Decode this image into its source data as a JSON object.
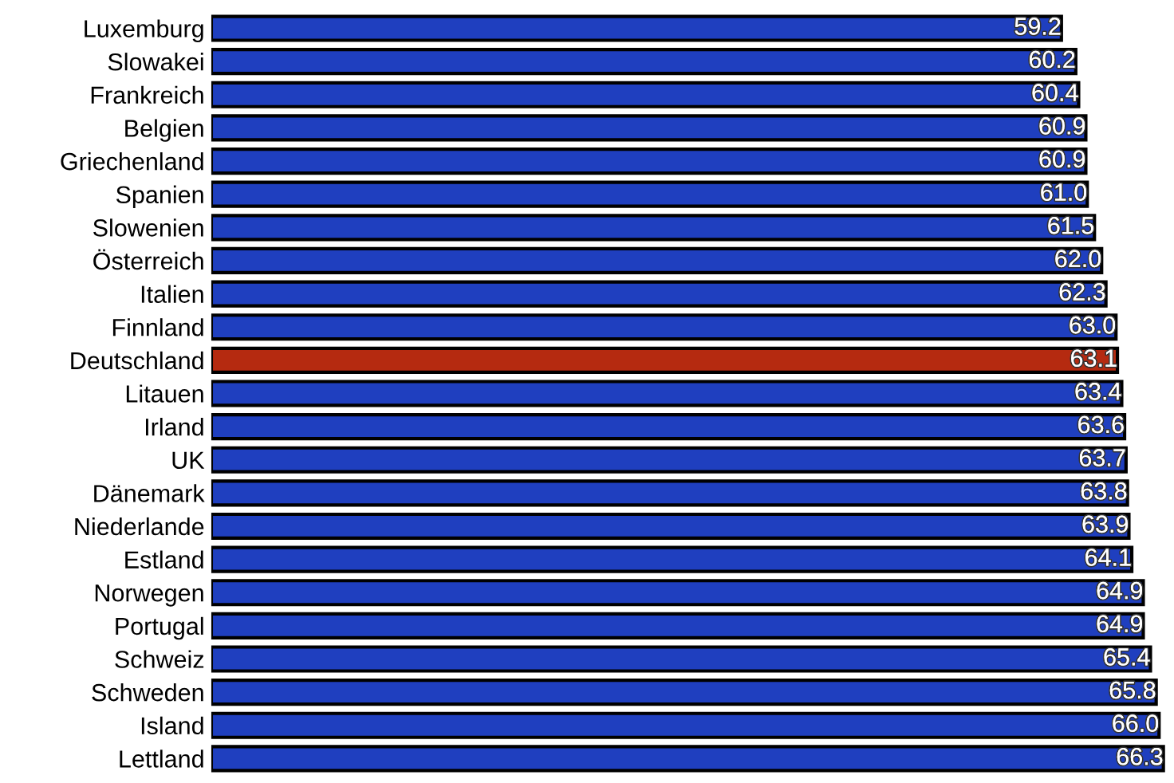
{
  "chart_data": {
    "type": "bar",
    "orientation": "horizontal",
    "categories": [
      "Luxemburg",
      "Slowakei",
      "Frankreich",
      "Belgien",
      "Griechenland",
      "Spanien",
      "Slowenien",
      "Österreich",
      "Italien",
      "Finnland",
      "Deutschland",
      "Litauen",
      "Irland",
      "UK",
      "Dänemark",
      "Niederlande",
      "Estland",
      "Norwegen",
      "Portugal",
      "Schweiz",
      "Schweden",
      "Island",
      "Lettland"
    ],
    "values": [
      59.2,
      60.2,
      60.4,
      60.9,
      60.9,
      61.0,
      61.5,
      62.0,
      62.3,
      63.0,
      63.1,
      63.4,
      63.6,
      63.7,
      63.8,
      63.9,
      64.1,
      64.9,
      64.9,
      65.4,
      65.8,
      66.0,
      66.3
    ],
    "colors": [
      "#1f3fbf",
      "#1f3fbf",
      "#1f3fbf",
      "#1f3fbf",
      "#1f3fbf",
      "#1f3fbf",
      "#1f3fbf",
      "#1f3fbf",
      "#1f3fbf",
      "#1f3fbf",
      "#b52a10",
      "#1f3fbf",
      "#1f3fbf",
      "#1f3fbf",
      "#1f3fbf",
      "#1f3fbf",
      "#1f3fbf",
      "#1f3fbf",
      "#1f3fbf",
      "#1f3fbf",
      "#1f3fbf",
      "#1f3fbf",
      "#1f3fbf"
    ],
    "value_labels": [
      "59.2",
      "60.2",
      "60.4",
      "60.9",
      "60.9",
      "61.0",
      "61.5",
      "62.0",
      "62.3",
      "63.0",
      "63.1",
      "63.4",
      "63.6",
      "63.7",
      "63.8",
      "63.9",
      "64.1",
      "64.9",
      "64.9",
      "65.4",
      "65.8",
      "66.0",
      "66.3"
    ]
  }
}
